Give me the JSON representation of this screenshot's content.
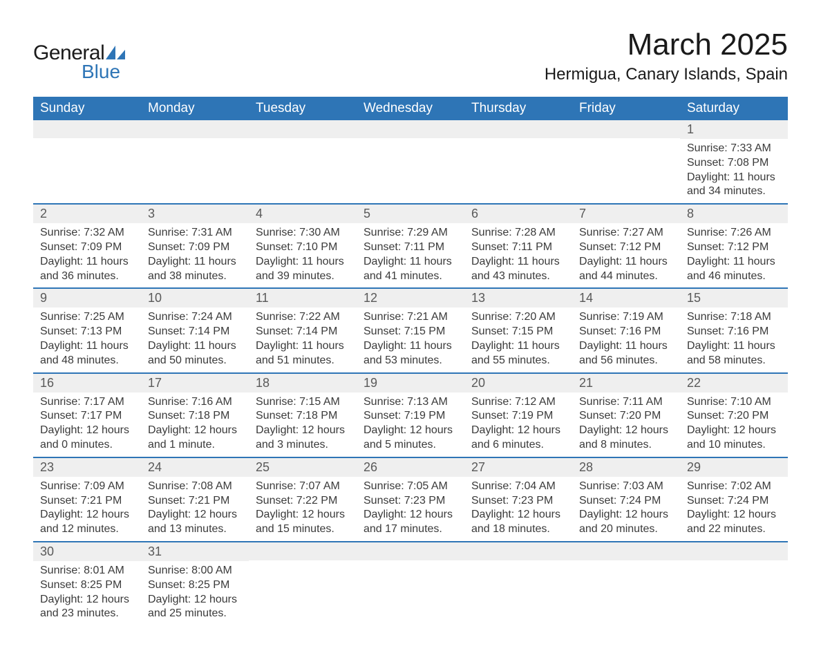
{
  "logo": {
    "text_general": "General",
    "text_blue": "Blue",
    "shape_color": "#2e75b6"
  },
  "title": "March 2025",
  "location": "Hermigua, Canary Islands, Spain",
  "colors": {
    "header_bg": "#2e75b6",
    "header_text": "#ffffff",
    "daynum_bg": "#efefef",
    "daynum_text": "#595959",
    "body_text": "#3a3a3a",
    "row_border": "#2e75b6",
    "page_bg": "#ffffff"
  },
  "typography": {
    "title_fontsize": 44,
    "location_fontsize": 24,
    "weekday_fontsize": 19,
    "daynum_fontsize": 18,
    "body_fontsize": 16,
    "font_family": "Arial"
  },
  "weekdays": [
    "Sunday",
    "Monday",
    "Tuesday",
    "Wednesday",
    "Thursday",
    "Friday",
    "Saturday"
  ],
  "labels": {
    "sunrise": "Sunrise:",
    "sunset": "Sunset:",
    "daylight": "Daylight:"
  },
  "weeks": [
    [
      {
        "empty": true
      },
      {
        "empty": true
      },
      {
        "empty": true
      },
      {
        "empty": true
      },
      {
        "empty": true
      },
      {
        "empty": true
      },
      {
        "day": "1",
        "sunrise": "7:33 AM",
        "sunset": "7:08 PM",
        "daylight": "11 hours and 34 minutes."
      }
    ],
    [
      {
        "day": "2",
        "sunrise": "7:32 AM",
        "sunset": "7:09 PM",
        "daylight": "11 hours and 36 minutes."
      },
      {
        "day": "3",
        "sunrise": "7:31 AM",
        "sunset": "7:09 PM",
        "daylight": "11 hours and 38 minutes."
      },
      {
        "day": "4",
        "sunrise": "7:30 AM",
        "sunset": "7:10 PM",
        "daylight": "11 hours and 39 minutes."
      },
      {
        "day": "5",
        "sunrise": "7:29 AM",
        "sunset": "7:11 PM",
        "daylight": "11 hours and 41 minutes."
      },
      {
        "day": "6",
        "sunrise": "7:28 AM",
        "sunset": "7:11 PM",
        "daylight": "11 hours and 43 minutes."
      },
      {
        "day": "7",
        "sunrise": "7:27 AM",
        "sunset": "7:12 PM",
        "daylight": "11 hours and 44 minutes."
      },
      {
        "day": "8",
        "sunrise": "7:26 AM",
        "sunset": "7:12 PM",
        "daylight": "11 hours and 46 minutes."
      }
    ],
    [
      {
        "day": "9",
        "sunrise": "7:25 AM",
        "sunset": "7:13 PM",
        "daylight": "11 hours and 48 minutes."
      },
      {
        "day": "10",
        "sunrise": "7:24 AM",
        "sunset": "7:14 PM",
        "daylight": "11 hours and 50 minutes."
      },
      {
        "day": "11",
        "sunrise": "7:22 AM",
        "sunset": "7:14 PM",
        "daylight": "11 hours and 51 minutes."
      },
      {
        "day": "12",
        "sunrise": "7:21 AM",
        "sunset": "7:15 PM",
        "daylight": "11 hours and 53 minutes."
      },
      {
        "day": "13",
        "sunrise": "7:20 AM",
        "sunset": "7:15 PM",
        "daylight": "11 hours and 55 minutes."
      },
      {
        "day": "14",
        "sunrise": "7:19 AM",
        "sunset": "7:16 PM",
        "daylight": "11 hours and 56 minutes."
      },
      {
        "day": "15",
        "sunrise": "7:18 AM",
        "sunset": "7:16 PM",
        "daylight": "11 hours and 58 minutes."
      }
    ],
    [
      {
        "day": "16",
        "sunrise": "7:17 AM",
        "sunset": "7:17 PM",
        "daylight": "12 hours and 0 minutes."
      },
      {
        "day": "17",
        "sunrise": "7:16 AM",
        "sunset": "7:18 PM",
        "daylight": "12 hours and 1 minute."
      },
      {
        "day": "18",
        "sunrise": "7:15 AM",
        "sunset": "7:18 PM",
        "daylight": "12 hours and 3 minutes."
      },
      {
        "day": "19",
        "sunrise": "7:13 AM",
        "sunset": "7:19 PM",
        "daylight": "12 hours and 5 minutes."
      },
      {
        "day": "20",
        "sunrise": "7:12 AM",
        "sunset": "7:19 PM",
        "daylight": "12 hours and 6 minutes."
      },
      {
        "day": "21",
        "sunrise": "7:11 AM",
        "sunset": "7:20 PM",
        "daylight": "12 hours and 8 minutes."
      },
      {
        "day": "22",
        "sunrise": "7:10 AM",
        "sunset": "7:20 PM",
        "daylight": "12 hours and 10 minutes."
      }
    ],
    [
      {
        "day": "23",
        "sunrise": "7:09 AM",
        "sunset": "7:21 PM",
        "daylight": "12 hours and 12 minutes."
      },
      {
        "day": "24",
        "sunrise": "7:08 AM",
        "sunset": "7:21 PM",
        "daylight": "12 hours and 13 minutes."
      },
      {
        "day": "25",
        "sunrise": "7:07 AM",
        "sunset": "7:22 PM",
        "daylight": "12 hours and 15 minutes."
      },
      {
        "day": "26",
        "sunrise": "7:05 AM",
        "sunset": "7:23 PM",
        "daylight": "12 hours and 17 minutes."
      },
      {
        "day": "27",
        "sunrise": "7:04 AM",
        "sunset": "7:23 PM",
        "daylight": "12 hours and 18 minutes."
      },
      {
        "day": "28",
        "sunrise": "7:03 AM",
        "sunset": "7:24 PM",
        "daylight": "12 hours and 20 minutes."
      },
      {
        "day": "29",
        "sunrise": "7:02 AM",
        "sunset": "7:24 PM",
        "daylight": "12 hours and 22 minutes."
      }
    ],
    [
      {
        "day": "30",
        "sunrise": "8:01 AM",
        "sunset": "8:25 PM",
        "daylight": "12 hours and 23 minutes."
      },
      {
        "day": "31",
        "sunrise": "8:00 AM",
        "sunset": "8:25 PM",
        "daylight": "12 hours and 25 minutes."
      },
      {
        "empty": true
      },
      {
        "empty": true
      },
      {
        "empty": true
      },
      {
        "empty": true
      },
      {
        "empty": true
      }
    ]
  ]
}
